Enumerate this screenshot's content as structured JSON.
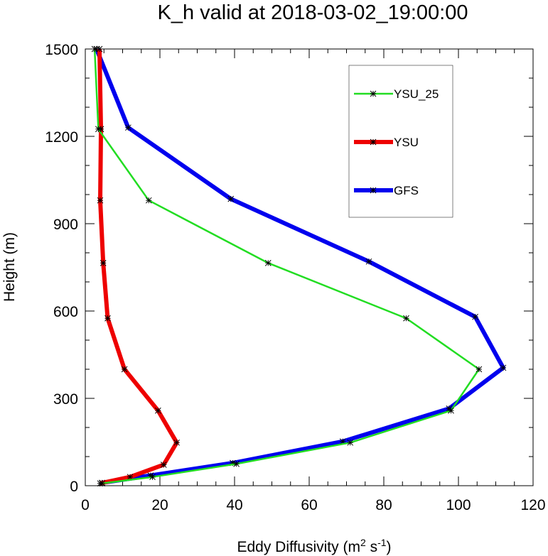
{
  "chart_data": {
    "type": "line",
    "title": "K_h valid at 2018-03-02_19:00:00",
    "xlabel_main": "Eddy Diffusivity (m",
    "xlabel_sup1": "2",
    "xlabel_mid": " s",
    "xlabel_sup2": "-1",
    "xlabel_end": ")",
    "ylabel": "Height (m)",
    "xlim": [
      0,
      120
    ],
    "ylim": [
      0,
      1500
    ],
    "xticks": [
      0,
      20,
      40,
      60,
      80,
      100,
      120
    ],
    "yticks": [
      0,
      300,
      600,
      900,
      1200,
      1500
    ],
    "legend_position": "top-right",
    "series": [
      {
        "name": "YSU_25",
        "color": "#22dd22",
        "x": [
          4.5,
          18,
          40.5,
          71,
          98,
          105.5,
          86,
          49,
          17,
          3.5,
          2.5
        ],
        "y": [
          8,
          30,
          75,
          148,
          258,
          400,
          575,
          765,
          980,
          1225,
          1500
        ]
      },
      {
        "name": "YSU",
        "color": "#ee0000",
        "x": [
          4,
          12,
          21,
          24.5,
          19.5,
          10.5,
          6,
          4.8,
          4,
          4.2,
          3.8
        ],
        "y": [
          8,
          30,
          72,
          148,
          258,
          400,
          575,
          765,
          980,
          1225,
          1500
        ]
      },
      {
        "name": "GFS",
        "color": "#0000ee",
        "x": [
          4.5,
          17.5,
          39.5,
          69,
          97.5,
          112,
          104.5,
          76,
          39,
          11.5,
          3
        ],
        "y": [
          10,
          35,
          78,
          152,
          265,
          405,
          580,
          770,
          985,
          1230,
          1500
        ]
      }
    ]
  }
}
